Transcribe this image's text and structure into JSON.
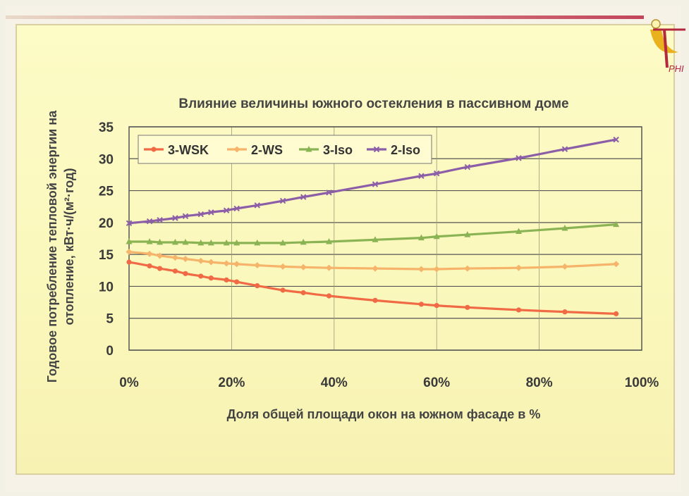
{
  "logo": {
    "text": "PHI",
    "icon": "phi-logo-icon"
  },
  "colors": {
    "3-WSK": "#f06b45",
    "2-WS": "#f6b36a",
    "3-Iso": "#8ab354",
    "2-Iso": "#8c5ea8"
  },
  "chart_data": {
    "type": "line",
    "title": "Влияние величины южного остекления в пассивном доме",
    "xlabel": "Доля общей площади окон на южном фасаде в %",
    "ylabel_line1": "Годовое потребление тепловой энергии на",
    "ylabel_line2": "отопление, кВт·ч/(м²·год)",
    "xlim": [
      0,
      100
    ],
    "ylim": [
      0,
      35
    ],
    "x_ticks": [
      0,
      20,
      40,
      60,
      80,
      100
    ],
    "x_tick_labels": [
      "0%",
      "20%",
      "40%",
      "60%",
      "80%",
      "100%"
    ],
    "y_ticks": [
      0,
      5,
      10,
      15,
      20,
      25,
      30,
      35
    ],
    "y_tick_labels": [
      "0",
      "5",
      "10",
      "15",
      "20",
      "25",
      "30",
      "35"
    ],
    "grid": "horizontal",
    "legend_placement": "top-left",
    "series": [
      {
        "name": "3-WSK",
        "marker": "circle",
        "x": [
          0,
          4,
          6,
          9,
          11,
          14,
          16,
          19,
          21,
          25,
          30,
          34,
          39,
          48,
          57,
          60,
          66,
          76,
          85,
          95
        ],
        "y": [
          13.8,
          13.2,
          12.8,
          12.4,
          12.0,
          11.6,
          11.3,
          11.0,
          10.7,
          10.1,
          9.4,
          9.0,
          8.5,
          7.8,
          7.2,
          7.0,
          6.7,
          6.3,
          6.0,
          5.7
        ]
      },
      {
        "name": "2-WS",
        "marker": "diamond",
        "x": [
          0,
          4,
          6,
          9,
          11,
          14,
          16,
          19,
          21,
          25,
          30,
          34,
          39,
          48,
          57,
          60,
          66,
          76,
          85,
          95
        ],
        "y": [
          15.4,
          15.1,
          14.8,
          14.5,
          14.3,
          14.0,
          13.8,
          13.6,
          13.5,
          13.3,
          13.1,
          13.0,
          12.9,
          12.8,
          12.7,
          12.7,
          12.8,
          12.9,
          13.1,
          13.5
        ]
      },
      {
        "name": "3-Iso",
        "marker": "triangle",
        "x": [
          0,
          4,
          6,
          9,
          11,
          14,
          16,
          19,
          21,
          25,
          30,
          34,
          39,
          48,
          57,
          60,
          66,
          76,
          85,
          95
        ],
        "y": [
          17.0,
          17.0,
          16.9,
          16.9,
          16.9,
          16.8,
          16.8,
          16.8,
          16.8,
          16.8,
          16.8,
          16.9,
          17.0,
          17.3,
          17.6,
          17.8,
          18.1,
          18.6,
          19.1,
          19.7
        ]
      },
      {
        "name": "2-Iso",
        "marker": "cross",
        "x": [
          0,
          4,
          6,
          9,
          11,
          14,
          16,
          19,
          21,
          25,
          30,
          34,
          39,
          48,
          57,
          60,
          66,
          76,
          85,
          95
        ],
        "y": [
          19.9,
          20.2,
          20.4,
          20.7,
          21.0,
          21.3,
          21.6,
          21.9,
          22.2,
          22.7,
          23.4,
          24.0,
          24.7,
          26.0,
          27.3,
          27.7,
          28.7,
          30.1,
          31.5,
          33.0
        ]
      }
    ]
  }
}
